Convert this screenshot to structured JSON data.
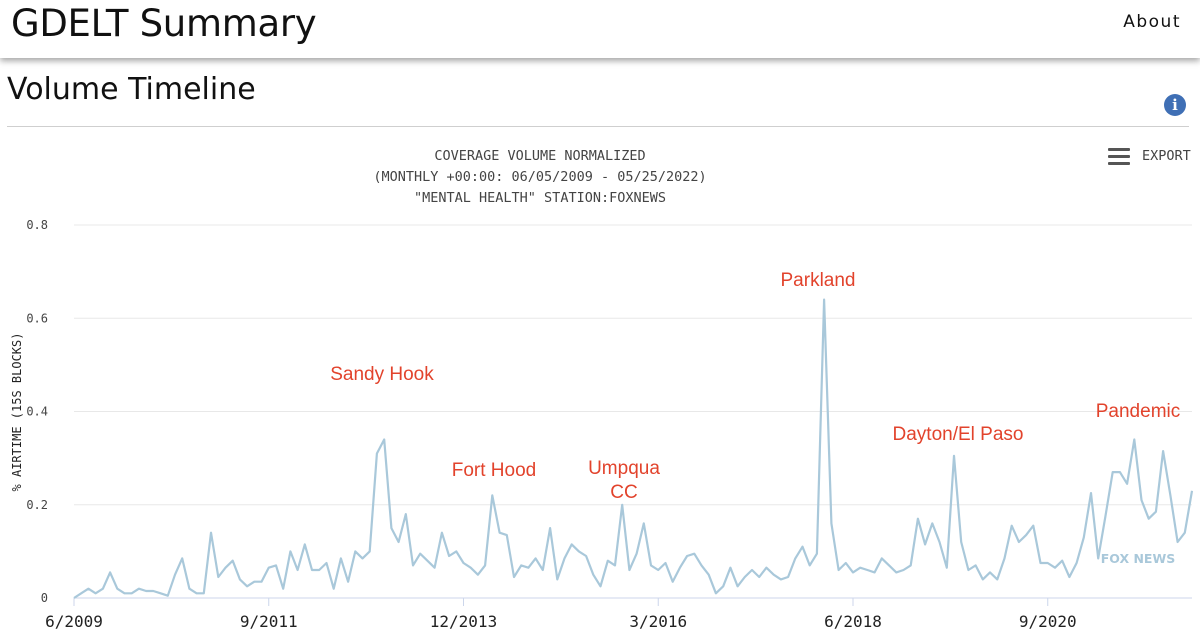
{
  "header": {
    "app_title": "GDELT Summary",
    "about_label": "About"
  },
  "section": {
    "title": "Volume Timeline",
    "info_icon": "info-icon"
  },
  "toolbar": {
    "export_label": "EXPORT",
    "menu_icon": "hamburger-menu-icon"
  },
  "chart_data": {
    "type": "line",
    "title_lines": [
      "COVERAGE VOLUME NORMALIZED",
      "(MONTHLY +00:00: 06/05/2009 - 05/25/2022)",
      "\"MENTAL HEALTH\" STATION:FOXNEWS"
    ],
    "ylabel": "% AIRTIME (15S BLOCKS)",
    "ylim": [
      0,
      0.8
    ],
    "y_ticks": [
      "0",
      "0.2",
      "0.4",
      "0.6",
      "0.8"
    ],
    "x_tick_labels": [
      "6/2009",
      "9/2011",
      "12/2013",
      "3/2016",
      "6/2018",
      "9/2020"
    ],
    "x_start": "2009-06",
    "x_end": "2022-05",
    "grid": true,
    "line_color": "#a9c8da",
    "series": [
      {
        "name": "FOX NEWS",
        "values": [
          0.0,
          0.01,
          0.02,
          0.01,
          0.02,
          0.055,
          0.02,
          0.01,
          0.01,
          0.02,
          0.015,
          0.015,
          0.01,
          0.005,
          0.05,
          0.085,
          0.02,
          0.01,
          0.01,
          0.14,
          0.045,
          0.065,
          0.08,
          0.04,
          0.025,
          0.035,
          0.035,
          0.065,
          0.07,
          0.02,
          0.1,
          0.06,
          0.115,
          0.06,
          0.06,
          0.075,
          0.02,
          0.085,
          0.035,
          0.1,
          0.085,
          0.1,
          0.31,
          0.34,
          0.15,
          0.12,
          0.18,
          0.07,
          0.095,
          0.08,
          0.065,
          0.14,
          0.09,
          0.1,
          0.075,
          0.065,
          0.05,
          0.07,
          0.22,
          0.14,
          0.135,
          0.045,
          0.07,
          0.065,
          0.085,
          0.06,
          0.15,
          0.04,
          0.085,
          0.115,
          0.1,
          0.09,
          0.05,
          0.025,
          0.08,
          0.07,
          0.2,
          0.06,
          0.095,
          0.16,
          0.07,
          0.06,
          0.075,
          0.035,
          0.065,
          0.09,
          0.095,
          0.07,
          0.05,
          0.01,
          0.025,
          0.065,
          0.025,
          0.045,
          0.06,
          0.045,
          0.065,
          0.05,
          0.04,
          0.045,
          0.085,
          0.11,
          0.07,
          0.095,
          0.64,
          0.16,
          0.06,
          0.075,
          0.055,
          0.065,
          0.06,
          0.055,
          0.085,
          0.07,
          0.055,
          0.06,
          0.07,
          0.17,
          0.115,
          0.16,
          0.12,
          0.065,
          0.305,
          0.12,
          0.06,
          0.07,
          0.04,
          0.055,
          0.04,
          0.085,
          0.155,
          0.12,
          0.135,
          0.155,
          0.075,
          0.075,
          0.065,
          0.08,
          0.045,
          0.075,
          0.13,
          0.225,
          0.085,
          0.175,
          0.27,
          0.27,
          0.245,
          0.34,
          0.21,
          0.17,
          0.185,
          0.315,
          0.22,
          0.12,
          0.14,
          0.23
        ]
      }
    ],
    "annotations": [
      {
        "text": "Sandy Hook",
        "x": "2012-12"
      },
      {
        "text": "Fort Hood",
        "x": "2014-04"
      },
      {
        "text": "Umpqua",
        "x": "2015-10"
      },
      {
        "text": "CC",
        "x": "2015-10"
      },
      {
        "text": "Parkland",
        "x": "2018-02"
      },
      {
        "text": "Dayton/El Paso",
        "x": "2019-08"
      },
      {
        "text": "Pandemic",
        "x": "2021-06"
      }
    ],
    "annotation_color": "#e2432c"
  }
}
